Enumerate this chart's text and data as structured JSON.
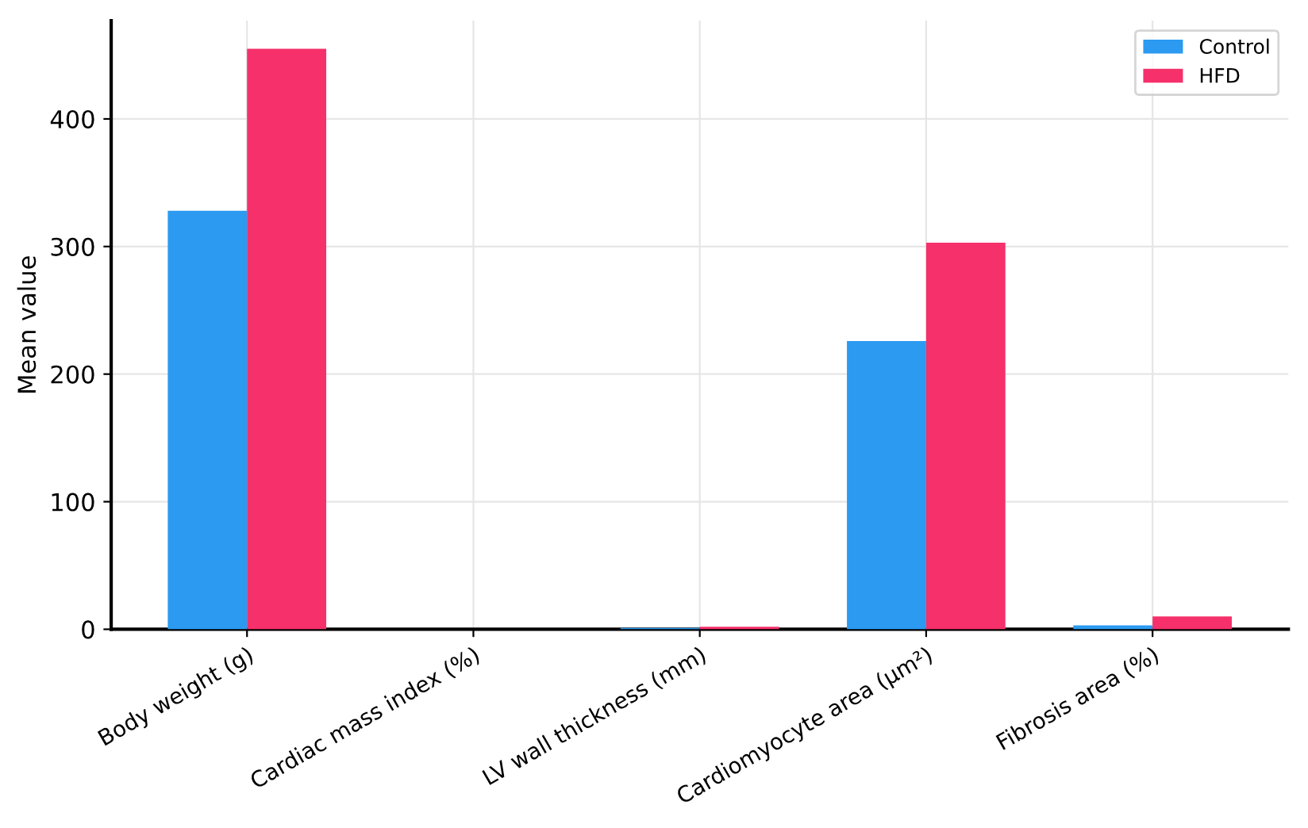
{
  "chart_data": {
    "type": "bar",
    "ylabel": "Mean value",
    "categories": [
      "Body weight (g)",
      "Cardiac mass index (%)",
      "LV wall thickness (mm)",
      "Cardiomyocyte area (µm²)",
      "Fibrosis area (%)"
    ],
    "series": [
      {
        "name": "Control",
        "color": "#2b9af0",
        "values": [
          328,
          0,
          1,
          226,
          3
        ]
      },
      {
        "name": "HFD",
        "color": "#f5306a",
        "values": [
          455,
          0,
          2,
          303,
          10
        ]
      }
    ],
    "ylim": [
      0,
      477
    ],
    "yticks": [
      0,
      100,
      200,
      300,
      400
    ],
    "grid": true,
    "legend": "top right"
  }
}
